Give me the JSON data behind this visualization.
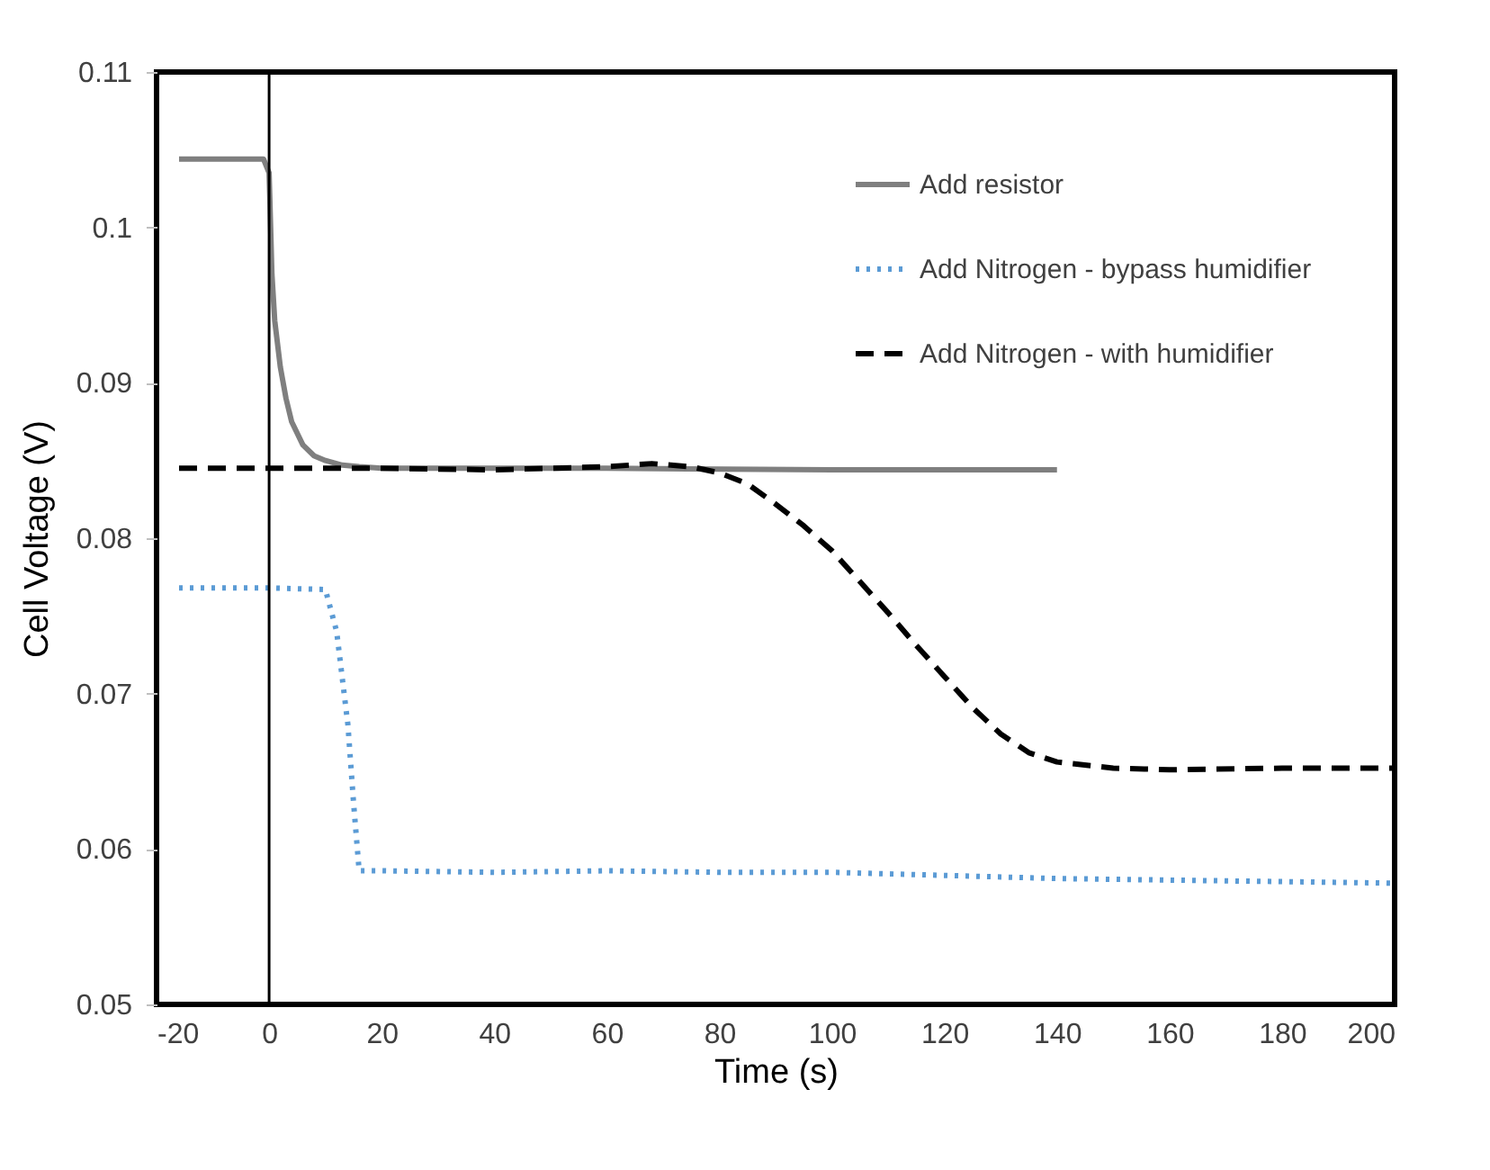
{
  "chart_data": {
    "type": "line",
    "xlabel": "Time (s)",
    "ylabel": "Cell Voltage (V)",
    "xlim": [
      -20,
      200
    ],
    "ylim": [
      0.05,
      0.11
    ],
    "xticks": [
      -20,
      0,
      20,
      40,
      60,
      80,
      100,
      120,
      140,
      160,
      180,
      200
    ],
    "yticks": [
      0.05,
      0.06,
      0.07,
      0.08,
      0.09,
      0.1,
      0.11
    ],
    "grid": false,
    "legend": "top right",
    "marker": "none",
    "ref_lines": [
      {
        "axis": "x",
        "value": 0,
        "color": "#000000"
      }
    ],
    "series": [
      {
        "name": "Add resistor",
        "color": "#7f7f7f",
        "line_style": "solid",
        "x": [
          -16,
          -1,
          0,
          0.5,
          1,
          2,
          3,
          4,
          6,
          8,
          10,
          13,
          16,
          20,
          30,
          60,
          100,
          140
        ],
        "values": [
          0.1044,
          0.1044,
          0.1035,
          0.097,
          0.094,
          0.091,
          0.089,
          0.0875,
          0.086,
          0.0853,
          0.085,
          0.0847,
          0.0846,
          0.0845,
          0.0845,
          0.0845,
          0.0844,
          0.0844
        ]
      },
      {
        "name": "Add Nitrogen - bypass humidifier",
        "color": "#5b9bd5",
        "line_style": "dotted",
        "x": [
          -16,
          0,
          10,
          12,
          14,
          15,
          16,
          20,
          40,
          60,
          80,
          100,
          120,
          140,
          160,
          180,
          200
        ],
        "values": [
          0.0768,
          0.0768,
          0.0767,
          0.074,
          0.068,
          0.063,
          0.0586,
          0.0586,
          0.0585,
          0.0586,
          0.0585,
          0.0585,
          0.0583,
          0.0581,
          0.058,
          0.0579,
          0.0578
        ]
      },
      {
        "name": "Add Nitrogen - with humidifier",
        "color": "#000000",
        "line_style": "dashed",
        "x": [
          -16,
          0,
          20,
          40,
          60,
          68,
          75,
          80,
          85,
          90,
          95,
          100,
          105,
          110,
          115,
          120,
          125,
          130,
          135,
          140,
          150,
          160,
          180,
          200
        ],
        "values": [
          0.0845,
          0.0845,
          0.0845,
          0.0844,
          0.0846,
          0.0848,
          0.0846,
          0.0842,
          0.0835,
          0.0822,
          0.0808,
          0.0792,
          0.0772,
          0.0752,
          0.0731,
          0.0711,
          0.0691,
          0.0674,
          0.0662,
          0.0656,
          0.0652,
          0.0651,
          0.0652,
          0.0652
        ]
      }
    ]
  }
}
